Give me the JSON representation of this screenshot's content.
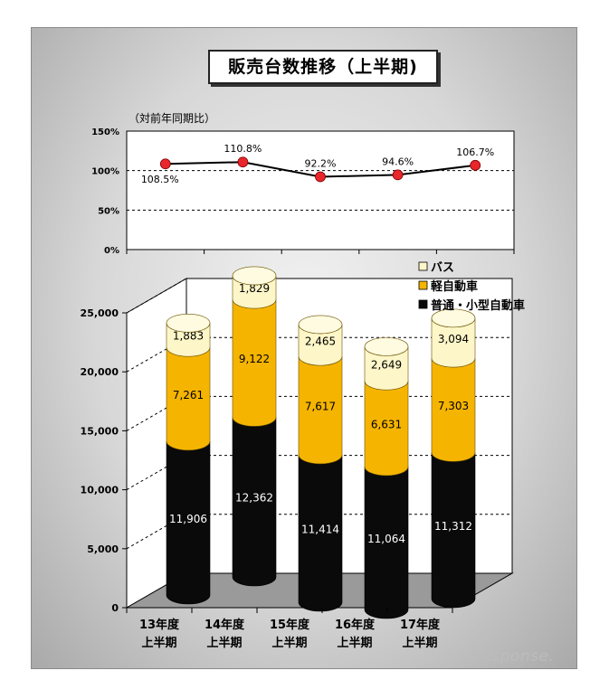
{
  "title": "販売台数推移（上半期)",
  "watermark": "Response.",
  "chart_data": [
    {
      "type": "line",
      "ylabel": "（対前年同期比）",
      "categories": [
        "13年度上半期",
        "14年度上半期",
        "15年度上半期",
        "16年度上半期",
        "17年度上半期"
      ],
      "values": [
        108.5,
        110.8,
        92.2,
        94.6,
        106.7
      ],
      "data_labels": [
        "108.5%",
        "110.8%",
        "92.2%",
        "94.6%",
        "106.7%"
      ],
      "yticks": [
        "150%",
        "100%",
        "50%",
        "0%"
      ],
      "ylim": [
        0,
        150
      ],
      "grid": true,
      "colors": {
        "line": "#000000",
        "marker": "#e8262b"
      }
    },
    {
      "type": "bar",
      "stacked": true,
      "categories": [
        "13年度\n上半期",
        "14年度\n上半期",
        "15年度\n上半期",
        "16年度\n上半期",
        "17年度\n上半期"
      ],
      "category_lines": [
        [
          "13年度",
          "上半期"
        ],
        [
          "14年度",
          "上半期"
        ],
        [
          "15年度",
          "上半期"
        ],
        [
          "16年度",
          "上半期"
        ],
        [
          "17年度",
          "上半期"
        ]
      ],
      "series": [
        {
          "name": "普通・小型自動車",
          "values": [
            11906,
            12362,
            11414,
            11064,
            11312
          ],
          "labels": [
            "11,906",
            "12,362",
            "11,414",
            "11,064",
            "11,312"
          ],
          "color": "#0a0a0a"
        },
        {
          "name": "軽自動車",
          "values": [
            7261,
            9122,
            7617,
            6631,
            7303
          ],
          "labels": [
            "7,261",
            "9,122",
            "7,617",
            "6,631",
            "7,303"
          ],
          "color": "#f5b400"
        },
        {
          "name": "バス",
          "values": [
            1883,
            1829,
            2465,
            2649,
            3094
          ],
          "labels": [
            "1,883",
            "1,829",
            "2,465",
            "2,649",
            "3,094"
          ],
          "color": "#fdf6c8"
        }
      ],
      "legend_order": [
        "バス",
        "軽自動車",
        "普通・小型自動車"
      ],
      "yticks": [
        "25,000",
        "20,000",
        "15,000",
        "10,000",
        "5,000",
        "0"
      ],
      "ylim": [
        0,
        25000
      ],
      "legend_position": "top-right",
      "grid": true
    }
  ]
}
